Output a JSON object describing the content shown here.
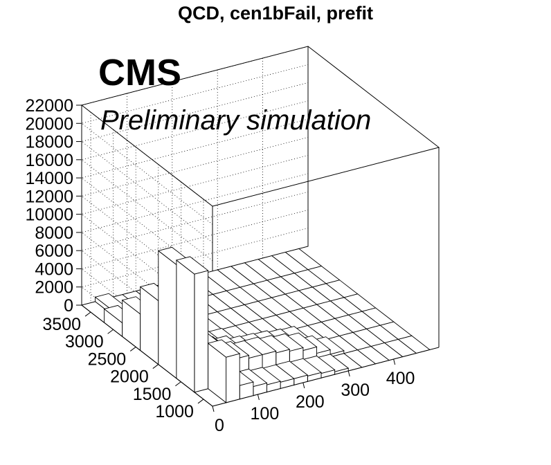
{
  "chart_data": {
    "type": "bar3d",
    "title": "QCD, cen1bFail, prefit",
    "xlabel": "",
    "ylabel": "",
    "zlabel": "",
    "x_range": [
      0,
      500
    ],
    "y_range": [
      800,
      3700
    ],
    "z_range": [
      0,
      22000
    ],
    "x_ticks": [
      "0",
      "100",
      "200",
      "300",
      "400"
    ],
    "y_ticks": [
      "1000",
      "1500",
      "2000",
      "2500",
      "3000",
      "3500"
    ],
    "z_ticks": [
      "0",
      "2000",
      "4000",
      "6000",
      "8000",
      "10000",
      "12000",
      "14000",
      "16000",
      "18000",
      "20000",
      "22000"
    ],
    "x_bins": [
      0,
      30,
      60,
      90,
      120,
      150,
      180,
      210,
      240,
      270,
      300,
      330,
      360,
      390,
      420,
      450,
      480
    ],
    "y_bins": [
      800,
      1200,
      1600,
      2000,
      2400,
      2800,
      3200,
      3700
    ],
    "heights": [
      [
        0,
        5000,
        1500,
        1000,
        800,
        700,
        700,
        600,
        500,
        300,
        0,
        0,
        0,
        0,
        0,
        0
      ],
      [
        13000,
        4500,
        3000,
        2500,
        2200,
        2200,
        2000,
        1800,
        1500,
        800,
        300,
        0,
        0,
        0,
        0,
        0
      ],
      [
        12500,
        3800,
        1500,
        1500,
        1200,
        800,
        700,
        600,
        400,
        300,
        0,
        0,
        0,
        0,
        0,
        0
      ],
      [
        7000,
        900,
        300,
        200,
        200,
        100,
        0,
        0,
        0,
        0,
        0,
        0,
        0,
        0,
        0,
        0
      ],
      [
        4000,
        500,
        200,
        0,
        0,
        0,
        0,
        0,
        0,
        0,
        0,
        0,
        0,
        0,
        0,
        0
      ],
      [
        1500,
        500,
        0,
        0,
        0,
        0,
        0,
        0,
        0,
        0,
        0,
        0,
        0,
        0,
        0,
        0
      ],
      [
        0,
        500,
        0,
        0,
        0,
        0,
        0,
        0,
        0,
        0,
        0,
        0,
        0,
        0,
        0,
        0
      ]
    ],
    "grid": true,
    "legend": "none"
  },
  "labels": {
    "experiment": "CMS",
    "status": "Preliminary simulation"
  }
}
